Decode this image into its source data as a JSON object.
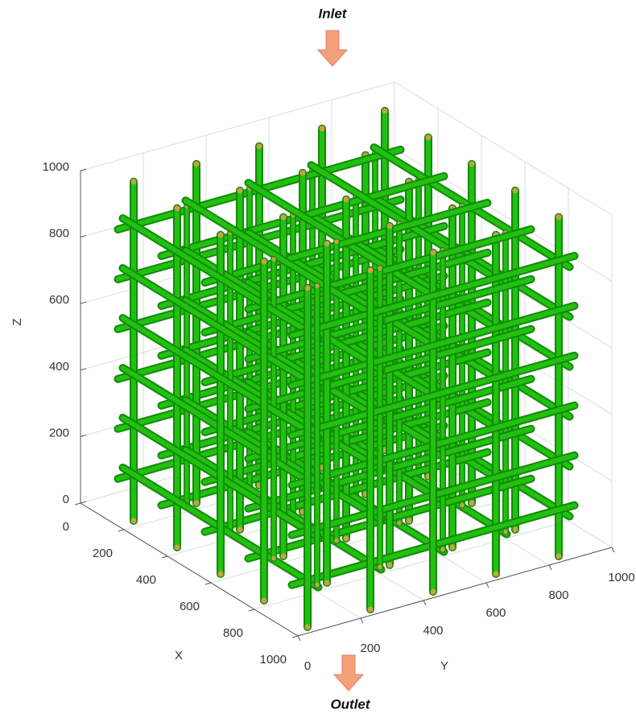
{
  "chart_data": {
    "type": "lattice3d",
    "annotations": [
      "Inlet",
      "Outlet"
    ],
    "xlabel": "X",
    "ylabel": "Y",
    "zlabel": "Z",
    "xlim": [
      0,
      1000
    ],
    "ylim": [
      0,
      1000
    ],
    "zlim": [
      0,
      1000
    ],
    "xticks": [
      0,
      200,
      400,
      600,
      800,
      1000
    ],
    "yticks": [
      0,
      200,
      400,
      600,
      800,
      1000
    ],
    "zticks": [
      0,
      200,
      400,
      600,
      800,
      1000
    ],
    "grid": true,
    "color": "#22c010"
  }
}
